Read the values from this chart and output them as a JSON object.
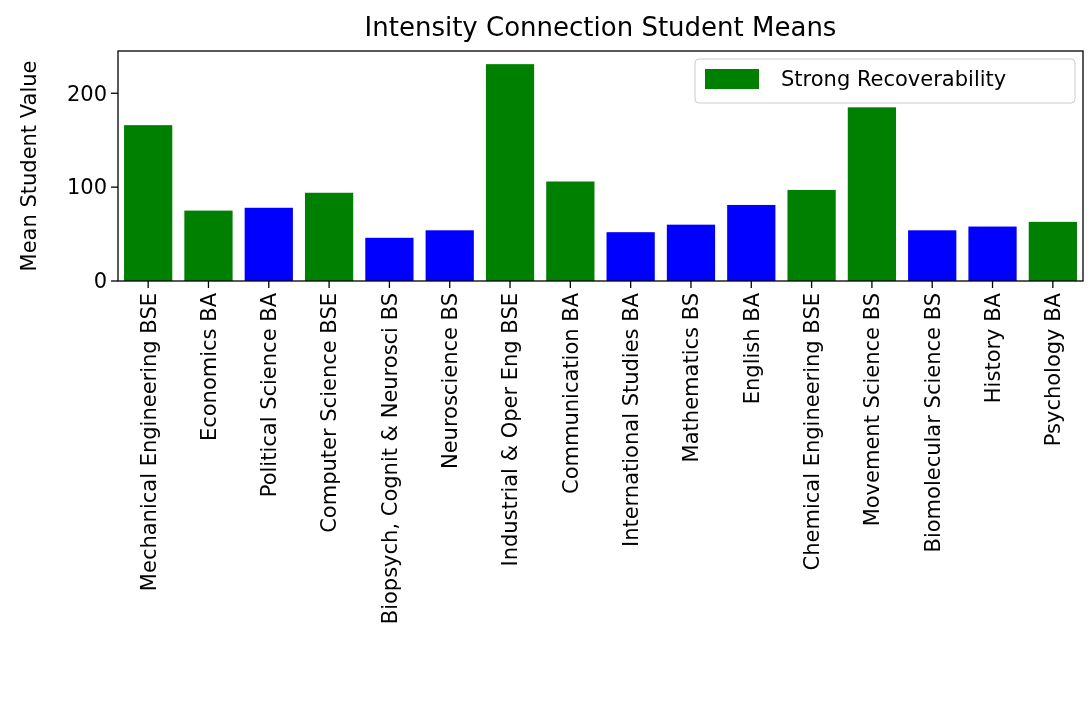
{
  "chart_data": {
    "type": "bar",
    "title": "Intensity Connection Student Means",
    "ylabel": "Mean Student Value",
    "categories": [
      "Mechanical Engineering BSE",
      "Economics BA",
      "Political Science BA",
      "Computer Science BSE",
      "Biopsych, Cognit & Neurosci BS",
      "Neuroscience BS",
      "Industrial & Oper Eng BSE",
      "Communication BA",
      "International Studies BA",
      "Mathematics BS",
      "English BA",
      "Chemical Engineering BSE",
      "Movement Science BS",
      "Biomolecular Science BS",
      "History BA",
      "Psychology BA"
    ],
    "series": [
      {
        "name": "Strong Recoverability",
        "color": "#008000",
        "values": [
          166,
          75,
          null,
          94,
          null,
          null,
          231,
          106,
          null,
          null,
          null,
          97,
          185,
          null,
          null,
          63
        ]
      },
      {
        "color": "#0000ff",
        "values": [
          null,
          null,
          78,
          null,
          46,
          54,
          null,
          null,
          52,
          60,
          81,
          null,
          null,
          54,
          58,
          null
        ]
      }
    ],
    "ylim": [
      0,
      245
    ],
    "yticks": [
      0,
      100,
      200
    ],
    "legend": "top right"
  }
}
